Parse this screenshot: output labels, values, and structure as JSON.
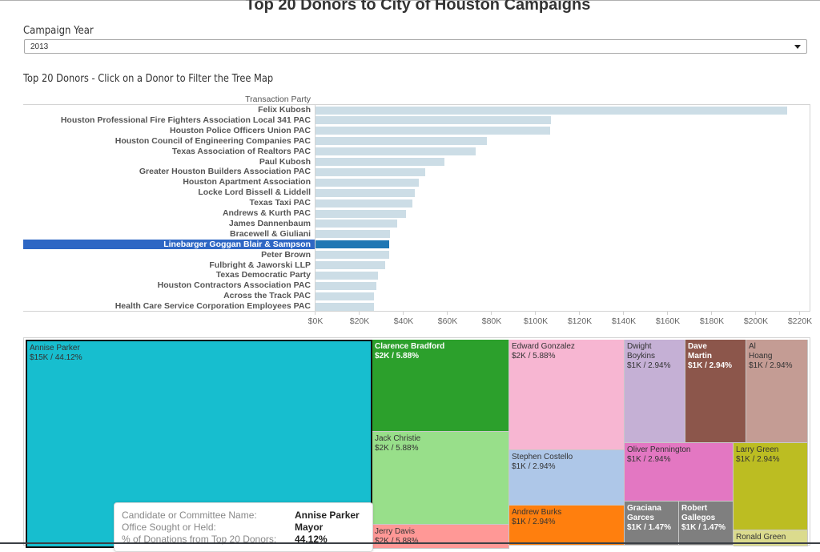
{
  "title": "Top 20 Donors to City of Houston Campaigns",
  "filter": {
    "label": "Campaign Year",
    "selected": "2013"
  },
  "subtitle": "Top 20 Donors - Click on a Donor to Filter the Tree Map",
  "chart_data": {
    "type": "bar",
    "orientation": "horizontal",
    "title": "Top 20 Donors - Click on a Donor to Filter the Tree Map",
    "column_header": "Transaction Party",
    "xlabel": "",
    "ylabel": "Transaction Party",
    "xlim": [
      0,
      225
    ],
    "x_unit": "$K",
    "x_ticks": [
      "$0K",
      "$20K",
      "$40K",
      "$60K",
      "$80K",
      "$100K",
      "$120K",
      "$140K",
      "$160K",
      "$180K",
      "$200K",
      "$220K"
    ],
    "x_tick_values": [
      0,
      20,
      40,
      60,
      80,
      100,
      120,
      140,
      160,
      180,
      200,
      220
    ],
    "selected": "Linebarger Goggan Blair & Sampson",
    "colors": {
      "bar": "#ccdde6",
      "selected_bar": "#1f77b4",
      "selected_label_bg": "#2e67c4"
    },
    "categories": [
      "Felix Kubosh",
      "Houston Professional Fire Fighters Association Local 341 PAC",
      "Houston Police Officers Union PAC",
      "Houston Council of Engineering Companies PAC",
      "Texas Association of Realtors PAC",
      "Paul Kubosh",
      "Greater Houston Builders Association PAC",
      "Houston Apartment Association",
      "Locke Lord Bissell & Liddell",
      "Texas Taxi PAC",
      "Andrews & Kurth PAC",
      "James Dannenbaum",
      "Bracewell & Giuliani",
      "Linebarger Goggan Blair & Sampson",
      "Peter Brown",
      "Fulbright & Jaworski LLP",
      "Texas Democratic Party",
      "Houston Contractors Association PAC",
      "Across the Track PAC",
      "Health Care Service Corporation Employees PAC"
    ],
    "values": [
      214.5,
      107.3,
      106.9,
      78.2,
      73.1,
      58.9,
      50.2,
      47.3,
      45.5,
      44.4,
      41.5,
      37.5,
      34.2,
      33.8,
      33.8,
      32.0,
      28.7,
      28.0,
      26.9,
      26.9
    ],
    "grid": false,
    "legend": "none"
  },
  "treemap": {
    "tiles": [
      {
        "name": "Annise Parker",
        "value": "$15K / 44.12%",
        "color": "#17becf",
        "white": false,
        "selected": true
      },
      {
        "name": "Clarence Bradford",
        "value": "$2K / 5.88%",
        "color": "#2ca02c",
        "white": true,
        "selected": false
      },
      {
        "name": "Jack Christie",
        "value": "$2K / 5.88%",
        "color": "#98df8a",
        "white": false,
        "selected": false
      },
      {
        "name": "Jerry Davis",
        "value": "$2K / 5.88%",
        "color": "#ff9896",
        "white": false,
        "selected": false
      },
      {
        "name": "Edward Gonzalez",
        "value": "$2K / 5.88%",
        "color": "#f7b6d2",
        "white": false,
        "selected": false
      },
      {
        "name": "Stephen Costello",
        "value": "$1K / 2.94%",
        "color": "#aec7e8",
        "white": false,
        "selected": false
      },
      {
        "name": "Andrew Burks",
        "value": "$1K / 2.94%",
        "color": "#ff7f0e",
        "white": false,
        "selected": false
      },
      {
        "name": "Dwight Boykins",
        "value": "$1K / 2.94%",
        "color": "#c5b0d5",
        "white": false,
        "selected": false
      },
      {
        "name": "Dave Martin",
        "value": "$1K / 2.94%",
        "color": "#8c564b",
        "white": true,
        "selected": false
      },
      {
        "name": "Al Hoang",
        "value": "$1K / 2.94%",
        "color": "#c49c94",
        "white": false,
        "selected": false
      },
      {
        "name": "Oliver Pennington",
        "value": "$1K / 2.94%",
        "color": "#e377c2",
        "white": false,
        "selected": false
      },
      {
        "name": "Larry Green",
        "value": "$1K / 2.94%",
        "color": "#bcbd22",
        "white": false,
        "selected": false
      },
      {
        "name": "Graciana Garces",
        "value": "$1K / 1.47%",
        "color": "#7f7f7f",
        "white": true,
        "selected": false
      },
      {
        "name": "Robert Gallegos",
        "value": "$1K / 1.47%",
        "color": "#7f7f7f",
        "white": true,
        "selected": false
      },
      {
        "name": "Ronald Green",
        "value": "",
        "color": "#dbdb8d",
        "white": false,
        "selected": false
      }
    ]
  },
  "tooltip": {
    "rows": [
      {
        "key": "Candidate or Committee Name:",
        "value": "Annise Parker"
      },
      {
        "key": "Office Sought or Held:",
        "value": "Mayor"
      },
      {
        "key": "% of Donations from Top 20 Donors:",
        "value": "44.12%"
      }
    ]
  }
}
